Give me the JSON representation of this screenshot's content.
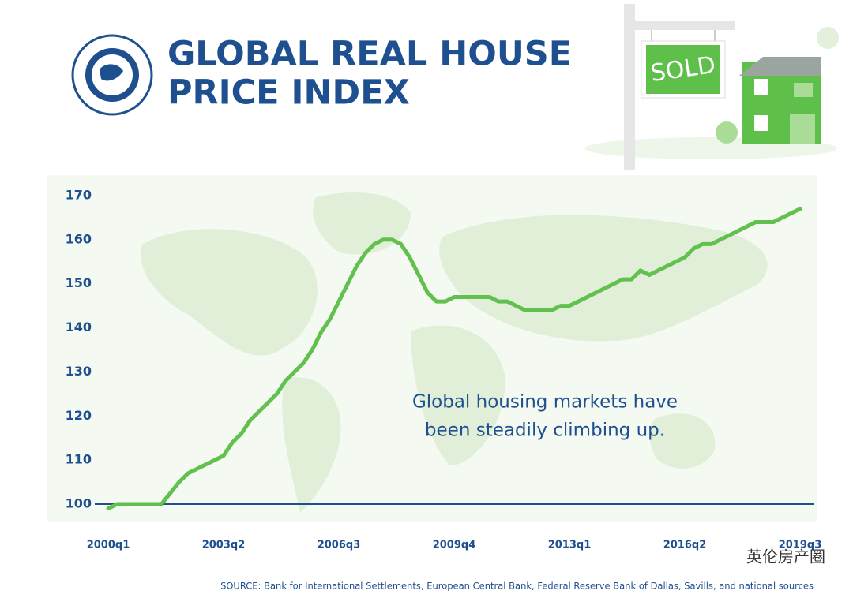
{
  "chart_data": {
    "type": "line",
    "title_lines": [
      "GLOBAL REAL HOUSE",
      "PRICE INDEX"
    ],
    "sign_text": "SOLD",
    "annotation_lines": [
      "Global housing markets have",
      "been steadily climbing up."
    ],
    "source": "SOURCE: Bank for International Settlements, European Central Bank, Federal Reserve Bank of Dallas, Savills, and national sources",
    "watermark": "英伦房产圈",
    "categories": [
      "2000q1",
      null,
      null,
      null,
      null,
      null,
      null,
      null,
      null,
      null,
      null,
      null,
      null,
      "2003q2",
      null,
      null,
      null,
      null,
      null,
      null,
      null,
      null,
      null,
      null,
      null,
      null,
      "2006q3",
      null,
      null,
      null,
      null,
      null,
      null,
      null,
      null,
      null,
      null,
      null,
      null,
      "2009q4",
      null,
      null,
      null,
      null,
      null,
      null,
      null,
      null,
      null,
      null,
      null,
      null,
      "2013q1",
      null,
      null,
      null,
      null,
      null,
      null,
      null,
      null,
      null,
      null,
      null,
      null,
      "2016q2",
      null,
      null,
      null,
      null,
      null,
      null,
      null,
      null,
      null,
      null,
      null,
      null,
      "2019q3"
    ],
    "values": [
      99,
      100,
      100,
      100,
      100,
      100,
      100,
      102.5,
      105,
      107,
      108,
      109,
      110,
      111,
      114,
      116,
      119,
      121,
      123,
      125,
      128,
      130,
      132,
      135,
      139,
      142,
      146,
      150,
      154,
      157,
      159,
      160,
      160,
      159,
      156,
      152,
      148,
      146,
      146,
      147,
      147,
      147,
      147,
      147,
      146,
      146,
      145,
      144,
      144,
      144,
      144,
      145,
      145,
      146,
      147,
      148,
      149,
      150,
      151,
      151,
      153,
      152,
      153,
      154,
      155,
      156,
      158,
      159,
      159,
      160,
      161,
      162,
      163,
      164,
      164,
      164,
      165,
      166,
      167
    ],
    "color": "#62c04e",
    "ylim": [
      97,
      172
    ],
    "yticks": [
      100,
      110,
      120,
      130,
      140,
      150,
      160,
      170
    ]
  }
}
